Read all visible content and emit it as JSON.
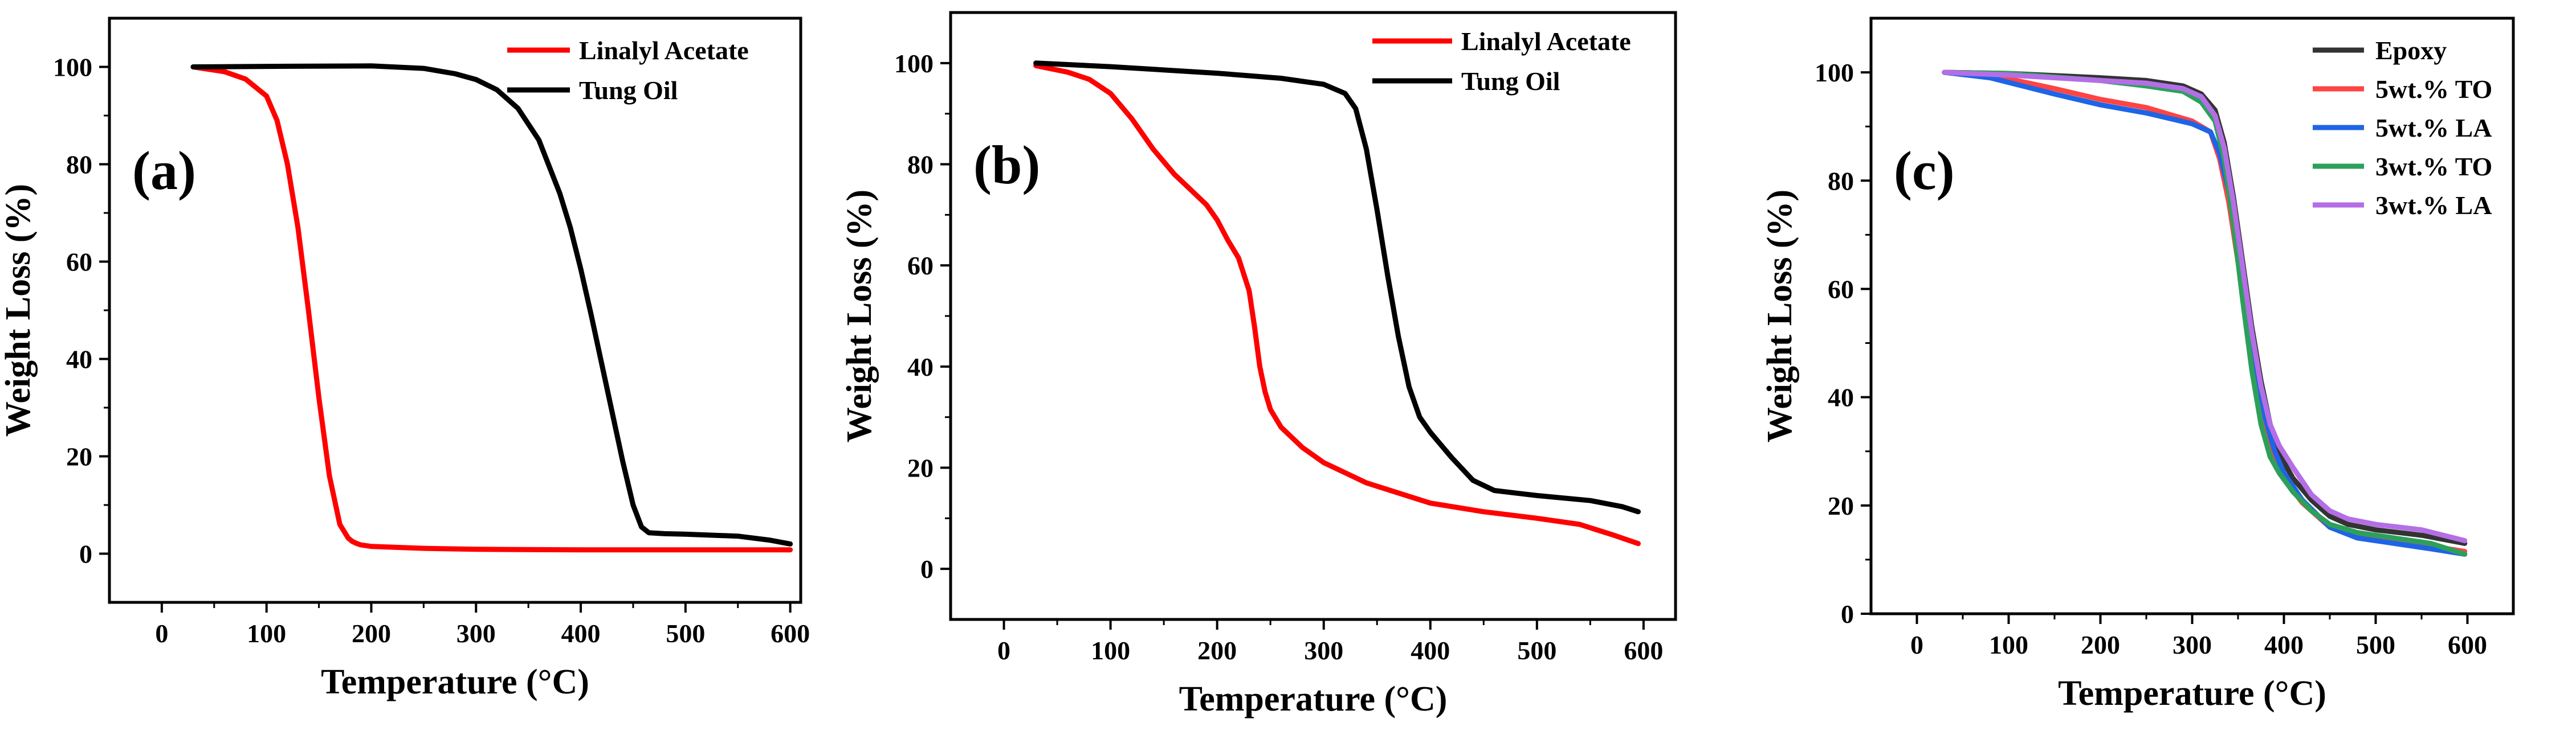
{
  "chart_data": [
    {
      "type": "line",
      "panel_label": "(a)",
      "xlabel": "Temperature (°C)",
      "ylabel": "Weight Loss (%)",
      "xlim": [
        -50,
        610
      ],
      "ylim": [
        -10,
        110
      ],
      "xticks": [
        0,
        100,
        200,
        300,
        400,
        500,
        600
      ],
      "yticks": [
        0,
        20,
        40,
        60,
        80,
        100
      ],
      "legend_position": "top-right",
      "series": [
        {
          "name": "Linalyl Acetate",
          "color": "#ff0000",
          "x": [
            30,
            60,
            80,
            100,
            110,
            120,
            130,
            140,
            150,
            160,
            170,
            178,
            182,
            186,
            190,
            200,
            250,
            300,
            400,
            500,
            600
          ],
          "y": [
            100,
            99,
            97.5,
            94,
            89,
            80,
            67,
            50,
            32,
            16,
            6,
            3.2,
            2.5,
            2.1,
            1.8,
            1.5,
            1.1,
            0.9,
            0.8,
            0.8,
            0.8
          ]
        },
        {
          "name": "Tung Oil",
          "color": "#000000",
          "x": [
            30,
            100,
            200,
            250,
            280,
            300,
            320,
            340,
            360,
            380,
            390,
            400,
            410,
            420,
            430,
            440,
            450,
            458,
            465,
            480,
            500,
            550,
            580,
            600
          ],
          "y": [
            100,
            100.1,
            100.2,
            99.7,
            98.6,
            97.4,
            95.3,
            91.5,
            85,
            74,
            67,
            58.5,
            49,
            39,
            29,
            19,
            10,
            5.5,
            4.3,
            4.1,
            4,
            3.6,
            2.8,
            2
          ]
        }
      ]
    },
    {
      "type": "line",
      "panel_label": "(b)",
      "xlabel": "Temperature (°C)",
      "ylabel": "Weight Loss (%)",
      "xlim": [
        -50,
        630
      ],
      "ylim": [
        -10,
        110
      ],
      "xticks": [
        0,
        100,
        200,
        300,
        400,
        500,
        600
      ],
      "yticks": [
        0,
        20,
        40,
        60,
        80,
        100
      ],
      "legend_position": "top-right",
      "series": [
        {
          "name": "Linalyl Acetate",
          "color": "#ff0000",
          "x": [
            30,
            60,
            80,
            100,
            120,
            140,
            160,
            175,
            190,
            200,
            210,
            220,
            230,
            235,
            240,
            245,
            250,
            260,
            280,
            300,
            340,
            400,
            450,
            500,
            540,
            570,
            595
          ],
          "y": [
            99.5,
            98.2,
            96.8,
            94,
            89,
            83,
            78,
            75,
            72,
            69,
            65,
            61.5,
            55,
            48,
            40,
            35,
            31.5,
            28,
            24,
            21,
            17,
            13,
            11.3,
            10,
            8.8,
            6.8,
            5
          ]
        },
        {
          "name": "Tung Oil",
          "color": "#000000",
          "x": [
            30,
            100,
            200,
            260,
            300,
            320,
            330,
            340,
            350,
            360,
            370,
            380,
            390,
            400,
            420,
            440,
            460,
            500,
            550,
            580,
            595
          ],
          "y": [
            100,
            99.3,
            98,
            97,
            95.8,
            94,
            91,
            83,
            71,
            58,
            46,
            36,
            30,
            27,
            22,
            17.5,
            15.5,
            14.5,
            13.5,
            12.3,
            11.3
          ]
        }
      ]
    },
    {
      "type": "line",
      "panel_label": "(c)",
      "xlabel": "Temperature (°C)",
      "ylabel": "Weight Loss (%)",
      "xlim": [
        -50,
        650
      ],
      "ylim": [
        0,
        110
      ],
      "xticks": [
        0,
        100,
        200,
        300,
        400,
        500,
        600
      ],
      "yticks": [
        0,
        20,
        40,
        60,
        80,
        100
      ],
      "legend_position": "top-right",
      "series": [
        {
          "name": "Epoxy",
          "color": "#333333",
          "x": [
            30,
            100,
            200,
            250,
            290,
            310,
            325,
            335,
            345,
            355,
            365,
            375,
            385,
            395,
            410,
            430,
            450,
            470,
            500,
            550,
            597
          ],
          "y": [
            100,
            99.8,
            99,
            98.5,
            97.5,
            96,
            93,
            87,
            77,
            65,
            53,
            43,
            35,
            29.5,
            25,
            21,
            18,
            16.5,
            15.5,
            14.5,
            13
          ]
        },
        {
          "name": "5wt.% TO",
          "color": "#ff4444",
          "x": [
            30,
            80,
            150,
            200,
            250,
            300,
            320,
            330,
            340,
            350,
            360,
            370,
            380,
            390,
            400,
            420,
            450,
            480,
            520,
            560,
            597
          ],
          "y": [
            100,
            99.5,
            97,
            95,
            93.5,
            91,
            89,
            84,
            76,
            65,
            53,
            42,
            34,
            28.5,
            25,
            20.5,
            16,
            14.5,
            13.5,
            12.5,
            11.5
          ]
        },
        {
          "name": "5wt.% LA",
          "color": "#1e64e6",
          "x": [
            30,
            80,
            150,
            200,
            250,
            300,
            320,
            330,
            340,
            350,
            360,
            370,
            380,
            390,
            400,
            420,
            450,
            480,
            520,
            560,
            597
          ],
          "y": [
            100,
            99,
            96,
            94,
            92.5,
            90.5,
            89,
            85,
            78,
            68,
            56,
            45,
            36,
            30,
            26,
            21,
            16,
            14,
            13,
            12,
            11
          ]
        },
        {
          "name": "3wt.% TO",
          "color": "#2ca05a",
          "x": [
            30,
            100,
            200,
            250,
            290,
            310,
            325,
            335,
            345,
            355,
            365,
            375,
            385,
            395,
            410,
            430,
            450,
            480,
            520,
            560,
            597
          ],
          "y": [
            100,
            99.8,
            98.5,
            97.5,
            96.5,
            94.5,
            91,
            84,
            72,
            58,
            45,
            35,
            29,
            26,
            22.5,
            19,
            16.5,
            15,
            14,
            13,
            11
          ]
        },
        {
          "name": "3wt.% LA",
          "color": "#b46ee6",
          "x": [
            30,
            100,
            200,
            250,
            290,
            310,
            325,
            335,
            345,
            355,
            365,
            375,
            385,
            395,
            410,
            430,
            450,
            470,
            500,
            550,
            597
          ],
          "y": [
            100,
            99.5,
            98.5,
            98,
            97,
            95.5,
            92,
            86,
            76,
            64,
            52,
            42,
            35,
            31,
            27,
            22,
            19,
            17.5,
            16.5,
            15.5,
            13.5
          ]
        }
      ]
    }
  ]
}
